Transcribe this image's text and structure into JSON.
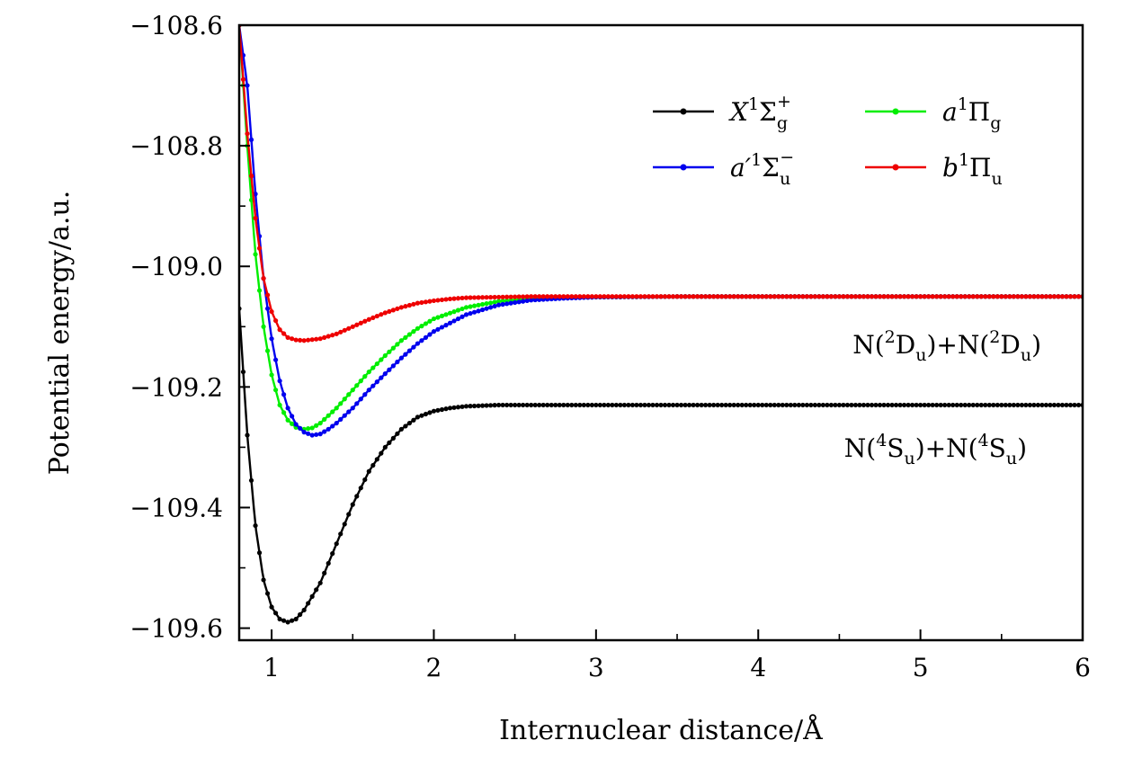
{
  "chart_data": {
    "type": "line",
    "xlabel": "Internuclear distance/Å",
    "ylabel": "Potential energy/a.u.",
    "xlim": [
      0.8,
      6
    ],
    "ylim": [
      -109.62,
      -108.6
    ],
    "xticks": [
      1,
      2,
      3,
      4,
      5,
      6
    ],
    "xtick_labels": [
      "1",
      "2",
      "3",
      "4",
      "5",
      "6"
    ],
    "yticks": [
      -108.6,
      -108.8,
      -109.0,
      -109.2,
      -109.4,
      -109.6
    ],
    "ytick_labels": [
      "−108.6",
      "−108.8",
      "−109.0",
      "−109.2",
      "−109.4",
      "−109.6"
    ],
    "grid": false,
    "legend_position": "top-right",
    "series": [
      {
        "name": "X1Σg+",
        "label_parts": {
          "base": "X",
          "pre_sup": "1",
          "sym": "Σ",
          "sub": "g",
          "sup": "+"
        },
        "color": "#000000",
        "x": [
          0.8,
          0.85,
          0.9,
          0.95,
          1.0,
          1.05,
          1.1,
          1.15,
          1.2,
          1.3,
          1.4,
          1.5,
          1.6,
          1.7,
          1.8,
          1.9,
          2.0,
          2.1,
          2.2,
          2.3,
          2.4,
          2.6,
          2.8,
          3.0,
          3.5,
          4.0,
          4.5,
          5.0,
          5.5,
          6.0
        ],
        "y": [
          -109.07,
          -109.28,
          -109.43,
          -109.52,
          -109.565,
          -109.585,
          -109.59,
          -109.585,
          -109.57,
          -109.525,
          -109.46,
          -109.395,
          -109.34,
          -109.3,
          -109.27,
          -109.25,
          -109.24,
          -109.235,
          -109.232,
          -109.231,
          -109.23,
          -109.23,
          -109.23,
          -109.23,
          -109.23,
          -109.23,
          -109.23,
          -109.23,
          -109.23,
          -109.23
        ]
      },
      {
        "name": "a1Πg",
        "label_parts": {
          "base": "a",
          "pre_sup": "1",
          "sym": "Π",
          "sub": "g",
          "sup": ""
        },
        "color": "#00ee00",
        "x": [
          0.8,
          0.85,
          0.9,
          0.95,
          1.0,
          1.05,
          1.1,
          1.15,
          1.2,
          1.25,
          1.3,
          1.4,
          1.5,
          1.6,
          1.7,
          1.8,
          1.9,
          2.0,
          2.2,
          2.4,
          2.6,
          2.8,
          3.0,
          3.5,
          4.0,
          5.0,
          6.0
        ],
        "y": [
          -108.6,
          -108.8,
          -108.98,
          -109.1,
          -109.18,
          -109.23,
          -109.255,
          -109.267,
          -109.27,
          -109.268,
          -109.26,
          -109.235,
          -109.205,
          -109.175,
          -109.148,
          -109.123,
          -109.103,
          -109.087,
          -109.068,
          -109.058,
          -109.054,
          -109.052,
          -109.051,
          -109.05,
          -109.05,
          -109.05,
          -109.05
        ]
      },
      {
        "name": "a′1Σu−",
        "label_parts": {
          "base": "a′",
          "pre_sup": "1",
          "sym": "Σ",
          "sub": "u",
          "sup": "−"
        },
        "color": "#0000ee",
        "x": [
          0.8,
          0.85,
          0.9,
          0.95,
          1.0,
          1.05,
          1.1,
          1.15,
          1.2,
          1.25,
          1.3,
          1.35,
          1.4,
          1.5,
          1.6,
          1.7,
          1.8,
          1.9,
          2.0,
          2.2,
          2.4,
          2.6,
          2.8,
          3.0,
          3.5,
          4.0,
          5.0,
          6.0
        ],
        "y": [
          -108.6,
          -108.7,
          -108.88,
          -109.02,
          -109.12,
          -109.19,
          -109.235,
          -109.262,
          -109.275,
          -109.28,
          -109.278,
          -109.27,
          -109.26,
          -109.235,
          -109.205,
          -109.178,
          -109.152,
          -109.128,
          -109.108,
          -109.08,
          -109.064,
          -109.056,
          -109.053,
          -109.051,
          -109.05,
          -109.05,
          -109.05,
          -109.05
        ]
      },
      {
        "name": "b1Πu",
        "label_parts": {
          "base": "b",
          "pre_sup": "1",
          "sym": "Π",
          "sub": "u",
          "sup": ""
        },
        "color": "#ee0000",
        "x": [
          0.8,
          0.85,
          0.9,
          0.95,
          1.0,
          1.05,
          1.1,
          1.15,
          1.2,
          1.3,
          1.4,
          1.5,
          1.6,
          1.7,
          1.8,
          1.9,
          2.0,
          2.1,
          2.2,
          2.4,
          2.6,
          2.8,
          3.0,
          3.5,
          4.0,
          5.0,
          6.0
        ],
        "y": [
          -108.6,
          -108.78,
          -108.92,
          -109.02,
          -109.075,
          -109.105,
          -109.118,
          -109.122,
          -109.123,
          -109.12,
          -109.112,
          -109.1,
          -109.088,
          -109.077,
          -109.068,
          -109.061,
          -109.057,
          -109.054,
          -109.052,
          -109.051,
          -109.05,
          -109.05,
          -109.05,
          -109.05,
          -109.05,
          -109.05,
          -109.05
        ]
      }
    ],
    "annotations": [
      {
        "name": "upper-asymptote",
        "text": "N(2Du)+N(2Du)",
        "atom": "N",
        "sup": "2",
        "term": "D",
        "sub": "u"
      },
      {
        "name": "lower-asymptote",
        "text": "N(4Su)+N(4Su)",
        "atom": "N",
        "sup": "4",
        "term": "S",
        "sub": "u"
      }
    ]
  }
}
